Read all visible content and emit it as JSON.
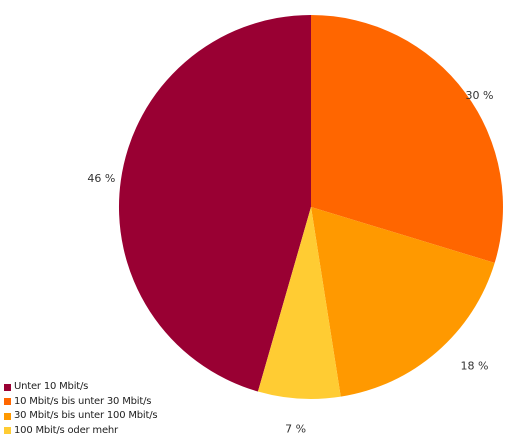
{
  "chart_data": {
    "type": "pie",
    "title": "",
    "legend_position": "bottom-left",
    "slices": [
      {
        "label": "Unter 10 Mbit/s",
        "value": 46,
        "value_label": "46 %",
        "color": "#990033"
      },
      {
        "label": "10 Mbit/s bis unter 30 Mbit/s",
        "value": 30,
        "value_label": "30 %",
        "color": "#FF6600"
      },
      {
        "label": "30 Mbit/s bis unter 100 Mbit/s",
        "value": 18,
        "value_label": "18 %",
        "color": "#FF9900"
      },
      {
        "label": "100 Mbit/s oder mehr",
        "value": 7,
        "value_label": "7 %",
        "color": "#FFCC33"
      }
    ]
  }
}
